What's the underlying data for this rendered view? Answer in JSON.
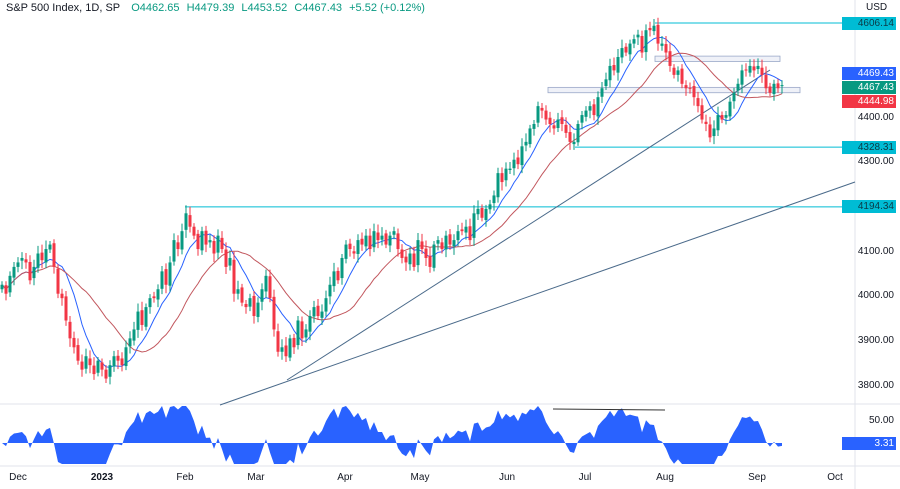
{
  "header": {
    "symbol": "S&P 500 Index, 1D, SP",
    "open": "O4462.65",
    "high": "H4479.39",
    "low": "L4453.52",
    "close": "C4467.43",
    "change": "+5.52 (+0.12%)"
  },
  "currency": "USD",
  "chart_data": {
    "type": "candlestick",
    "title": "S&P 500 Index, 1D, SP",
    "ylim": [
      3760,
      4640
    ],
    "y_ticks": [
      "4400.00",
      "4300.00",
      "4100.00",
      "4000.00",
      "3900.00",
      "3800.00"
    ],
    "x_ticks": [
      {
        "label": "Dec",
        "bold": false
      },
      {
        "label": "2023",
        "bold": true
      },
      {
        "label": "Feb",
        "bold": false
      },
      {
        "label": "Mar",
        "bold": false
      },
      {
        "label": "Apr",
        "bold": false
      },
      {
        "label": "May",
        "bold": false
      },
      {
        "label": "Jun",
        "bold": false
      },
      {
        "label": "Jul",
        "bold": false
      },
      {
        "label": "Aug",
        "bold": false
      },
      {
        "label": "Sep",
        "bold": false
      },
      {
        "label": "Oct",
        "bold": false
      }
    ],
    "closes": [
      4020,
      4000,
      4040,
      4060,
      4070,
      4080,
      4070,
      4030,
      4060,
      4090,
      4075,
      4100,
      4110,
      4060,
      4000,
      3990,
      3940,
      3900,
      3880,
      3850,
      3830,
      3860,
      3840,
      3820,
      3850,
      3830,
      3810,
      3840,
      3860,
      3850,
      3840,
      3880,
      3900,
      3920,
      3960,
      3930,
      3970,
      3990,
      3990,
      4010,
      4050,
      4020,
      4070,
      4120,
      4100,
      4140,
      4180,
      4150,
      4130,
      4100,
      4140,
      4110,
      4120,
      4090,
      4130,
      4100,
      4060,
      4080,
      4000,
      4010,
      3980,
      3970,
      3990,
      3950,
      3980,
      4010,
      4040,
      3990,
      3920,
      3870,
      3880,
      3860,
      3900,
      3880,
      3940,
      3900,
      3920,
      3950,
      3970,
      3950,
      3960,
      3990,
      4020,
      4050,
      4030,
      4080,
      4110,
      4100,
      4090,
      4120,
      4110,
      4130,
      4100,
      4140,
      4120,
      4130,
      4110,
      4130,
      4140,
      4100,
      4080,
      4070,
      4090,
      4060,
      4120,
      4100,
      4080,
      4060,
      4110,
      4120,
      4100,
      4130,
      4110,
      4120,
      4140,
      4140,
      4150,
      4120,
      4180,
      4190,
      4170,
      4190,
      4200,
      4220,
      4270,
      4250,
      4280,
      4280,
      4300,
      4290,
      4330,
      4340,
      4370,
      4380,
      4420,
      4410,
      4390,
      4380,
      4370,
      4390,
      4380,
      4360,
      4340,
      4340,
      4380,
      4400,
      4410,
      4420,
      4400,
      4440,
      4460,
      4480,
      4510,
      4500,
      4530,
      4550,
      4540,
      4560,
      4570,
      4580,
      4540,
      4590,
      4590,
      4600,
      4560,
      4560,
      4540,
      4510,
      4490,
      4500,
      4470,
      4460,
      4460,
      4440,
      4420,
      4390,
      4380,
      4350,
      4370,
      4400,
      4390,
      4400,
      4430,
      4450,
      4470,
      4500,
      4500,
      4510,
      4500,
      4510,
      4490,
      4460,
      4450,
      4470,
      4460,
      4467
    ],
    "last_close": 4467.43,
    "levels": [
      {
        "label": "4606.14",
        "value": 4606.14
      },
      {
        "label": "4328.31",
        "value": 4328.31
      },
      {
        "label": "4194.34",
        "value": 4194.34
      }
    ],
    "ma_labels": [
      {
        "label": "4469.43",
        "color": "#2962ff"
      },
      {
        "label": "4467.43",
        "color": "#089981"
      },
      {
        "label": "4444.98",
        "color": "#f23645"
      }
    ],
    "oscillator": {
      "level_label": "50.00",
      "value_label": "3.31",
      "color": "#2962ff"
    },
    "colors": {
      "up": "#089981",
      "down": "#f23645",
      "ma_fast": "#2962ff",
      "ma_slow": "#c2575e",
      "level": "#00bcd4",
      "trend": "#4a6a8a"
    }
  }
}
